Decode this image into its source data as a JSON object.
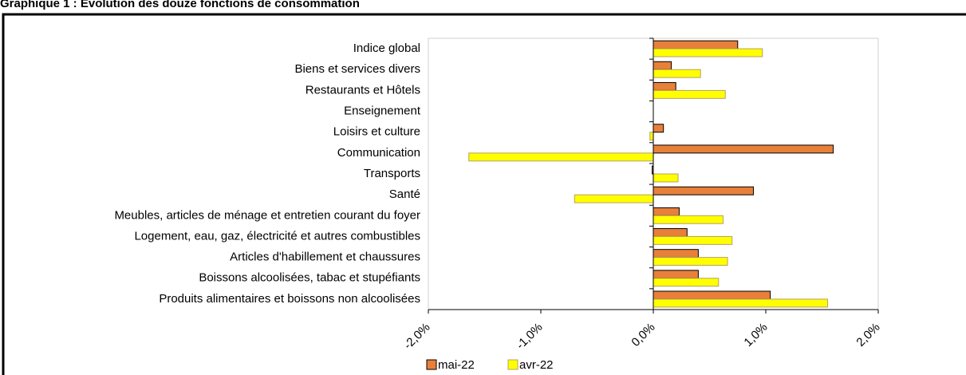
{
  "chart_data": {
    "type": "hbar",
    "title": "Graphique 1 : Evolution des douze fonctions de consommation",
    "categories": [
      "Indice global",
      "Biens et services divers",
      "Restaurants et Hôtels",
      "Enseignement",
      "Loisirs et culture",
      "Communication",
      "Transports",
      "Santé",
      "Meubles, articles de ménage et entretien courant du foyer",
      "Logement, eau, gaz, électricité et autres combustibles",
      "Articles d'habillement et chaussures",
      "Boissons alcoolisées, tabac et stupéfiants",
      "Produits alimentaires et boissons non alcoolisées"
    ],
    "series": [
      {
        "name": "mai-22",
        "color": "#e8803a",
        "values": [
          0.75,
          0.16,
          0.2,
          0,
          0.09,
          1.6,
          -0.01,
          0.89,
          0.23,
          0.3,
          0.4,
          0.4,
          1.04
        ]
      },
      {
        "name": "avr-22",
        "color": "#ffff00",
        "values": [
          0.97,
          0.42,
          0.64,
          0,
          -0.03,
          -1.64,
          0.22,
          -0.7,
          0.62,
          0.7,
          0.66,
          0.58,
          1.55
        ]
      }
    ],
    "xlim": [
      -2,
      2
    ],
    "xticks": [
      {
        "value": -2,
        "label": "-2,0%"
      },
      {
        "value": -1,
        "label": "-1,0%"
      },
      {
        "value": 0,
        "label": "0,0%"
      },
      {
        "value": 1,
        "label": "1,0%"
      },
      {
        "value": 2,
        "label": "2,0%"
      }
    ],
    "legend": "bottom"
  }
}
